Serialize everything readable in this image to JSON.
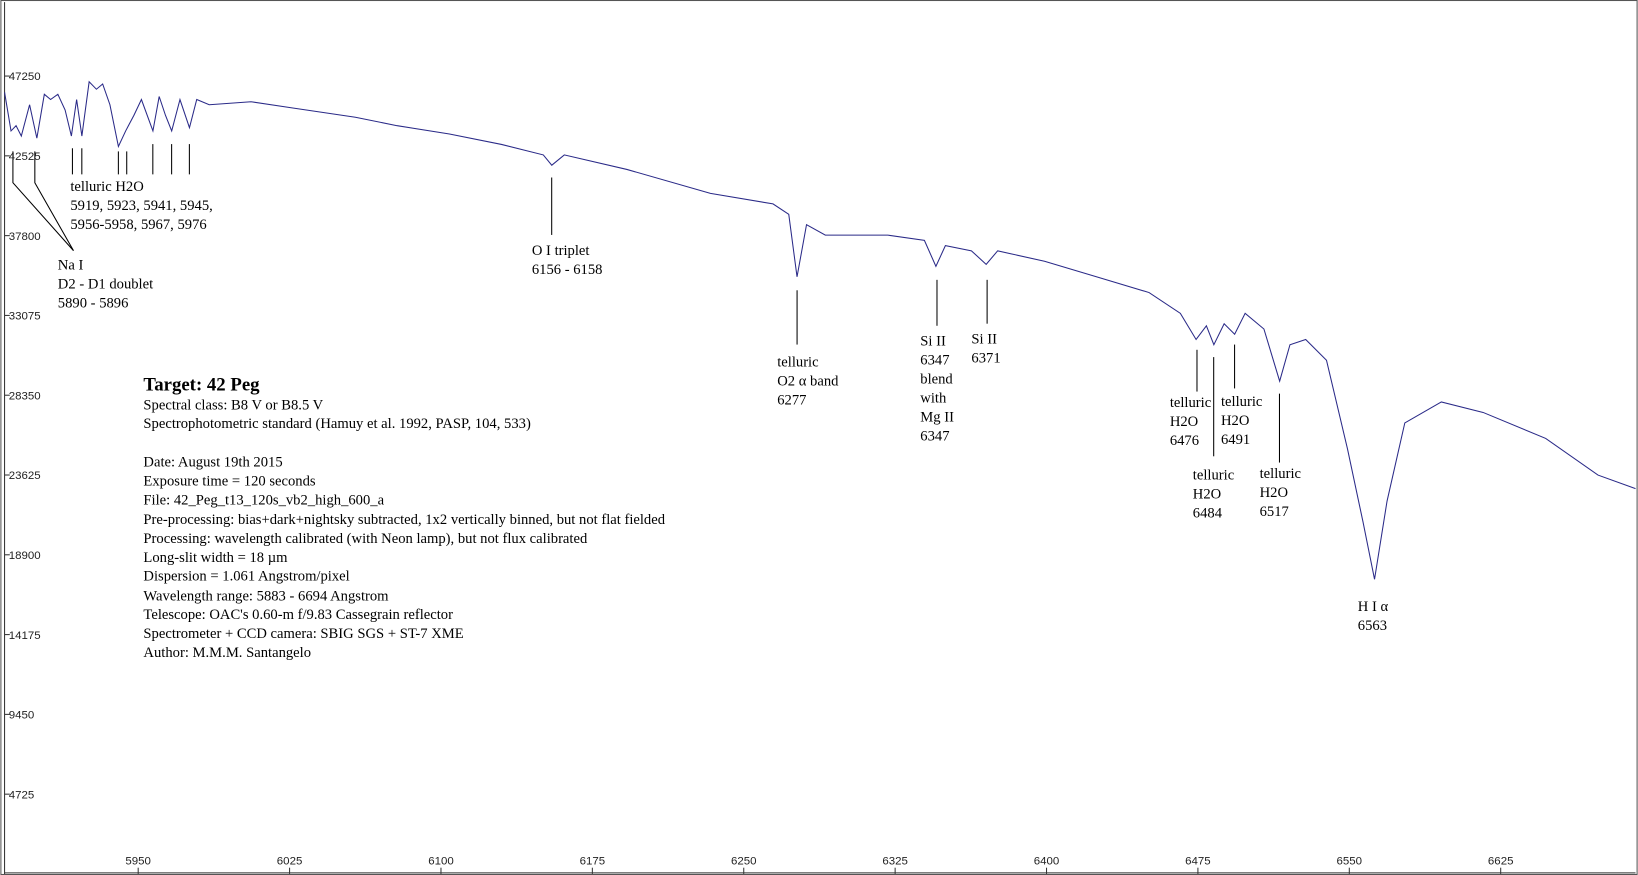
{
  "chart_data": {
    "type": "line",
    "xlim": [
      5883.8,
      6691.8
    ],
    "ylim": [
      0,
      51630
    ],
    "xticks": [
      5950,
      6025,
      6100,
      6175,
      6250,
      6325,
      6400,
      6475,
      6550,
      6625
    ],
    "yticks": [
      4725,
      9450,
      14175,
      18900,
      23625,
      28350,
      33075,
      37800,
      42525,
      47250
    ],
    "series": [
      {
        "color": "#2a2a88",
        "x": [
          5883.8,
          5887.0,
          5889.5,
          5892.1,
          5896.2,
          5899.8,
          5903.5,
          5906.6,
          5910.2,
          5913.8,
          5916.9,
          5919.5,
          5922.1,
          5925.7,
          5929.3,
          5932.4,
          5936.0,
          5940.2,
          5943.8,
          5947.9,
          5951.6,
          5957.3,
          5960.4,
          5963.5,
          5966.6,
          5970.7,
          5975.4,
          5979.0,
          5985.2,
          6005.9,
          6026.6,
          6057.6,
          6078.3,
          6104.2,
          6130.0,
          6150.7,
          6154.9,
          6161.1,
          6192.1,
          6233.5,
          6264.5,
          6272.3,
          6276.4,
          6281.1,
          6290.4,
          6321.4,
          6339.5,
          6345.2,
          6349.9,
          6362.8,
          6370.1,
          6375.8,
          6399.0,
          6424.9,
          6450.8,
          6466.3,
          6474.1,
          6479.2,
          6482.9,
          6488.0,
          6493.2,
          6498.4,
          6507.7,
          6515.5,
          6520.6,
          6528.4,
          6538.7,
          6549.1,
          6556.8,
          6562.5,
          6568.7,
          6577.5,
          6595.6,
          6616.3,
          6647.3,
          6673.2,
          6691.8
        ],
        "values": [
          46290,
          44000,
          44310,
          43700,
          45550,
          43570,
          46170,
          45860,
          46170,
          45240,
          43700,
          45860,
          43700,
          46910,
          46470,
          46780,
          45550,
          43080,
          44000,
          44930,
          45860,
          44000,
          46040,
          44930,
          44000,
          45860,
          44190,
          45860,
          45550,
          45730,
          45360,
          44810,
          44310,
          43820,
          43200,
          42580,
          41970,
          42580,
          41720,
          40300,
          39680,
          39060,
          35360,
          38450,
          37830,
          37830,
          37520,
          35980,
          37210,
          36900,
          36100,
          36900,
          36280,
          35360,
          34430,
          33200,
          31650,
          32460,
          31340,
          32580,
          31960,
          33200,
          32270,
          29180,
          31340,
          31650,
          30420,
          25170,
          20840,
          17450,
          22080,
          26710,
          27950,
          27330,
          25790,
          23620,
          22820
        ]
      }
    ],
    "annotations": [
      [
        "Na I",
        "D2 - D1 doublet",
        "5890 - 5896"
      ],
      [
        "telluric H2O",
        "5919, 5923, 5941, 5945,",
        "5956-5958, 5967, 5976"
      ],
      [
        "O I triplet",
        "6156 - 6158"
      ],
      [
        "telluric",
        "O2 α band",
        "6277"
      ],
      [
        "Si II",
        "6347",
        "blend",
        "with",
        "Mg II",
        "6347"
      ],
      [
        "Si II",
        "6371"
      ],
      [
        "telluric",
        "H2O",
        "6476"
      ],
      [
        "telluric",
        "H2O",
        "6484"
      ],
      [
        "telluric",
        "H2O",
        "6491"
      ],
      [
        "telluric",
        "H2O",
        "6517"
      ],
      [
        "H I  α",
        "6563"
      ]
    ],
    "info": {
      "title": "Target: 42 Peg",
      "lines": [
        "Spectral class: B8 V or B8.5 V",
        "Spectrophotometric standard (Hamuy et al. 1992, PASP, 104, 533)",
        "Date: August 19th 2015",
        "Exposure time = 120 seconds",
        "File: 42_Peg_t13_120s_vb2_high_600_a",
        "Pre-processing: bias+dark+nightsky subtracted, 1x2 vertically binned, but not flat fielded",
        "Processing: wavelength calibrated (with Neon lamp), but not flux calibrated",
        "Long-slit width = 18 µm",
        "Dispersion = 1.061 Angstrom/pixel",
        "Wavelength range: 5883 - 6694 Angstrom",
        "Telescope: OAC's 0.60-m  f/9.83 Cassegrain reflector",
        "Spectrometer + CCD camera: SBIG SGS + ST-7 XME",
        "Author: M.M.M. Santangelo"
      ]
    }
  }
}
